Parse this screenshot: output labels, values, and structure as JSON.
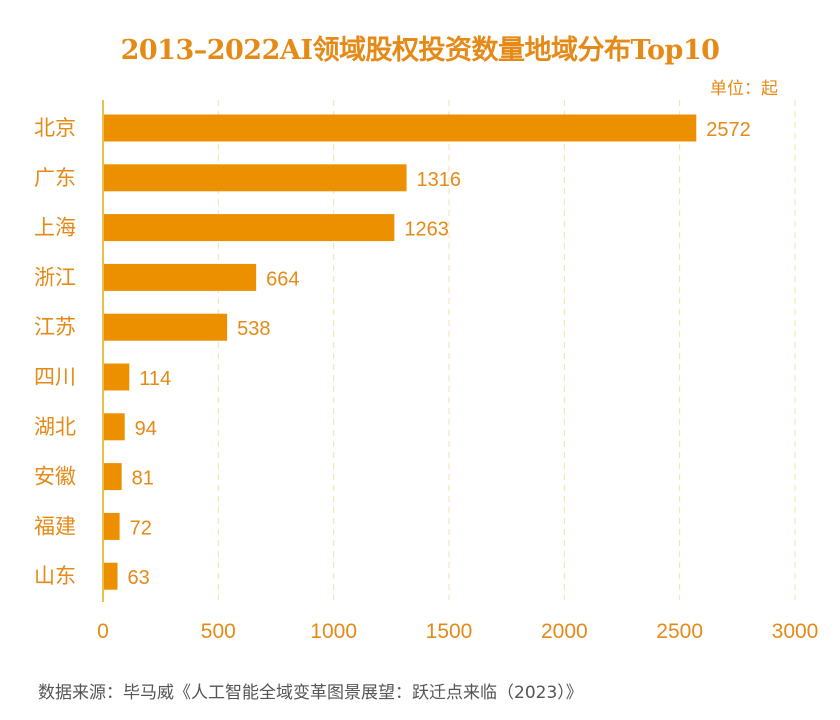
{
  "title": "2013–2022AI领域股权投资数量地域分布Top10",
  "unit": "单位：起",
  "source": "数据来源：毕马威《人工智能全域变革图景展望：跃迁点来临（2023）》",
  "colors": {
    "bar": "#EC9000",
    "text": "#E58A17",
    "grid": "#F3DFA8",
    "axis": "#E9C14A"
  },
  "chart_data": {
    "type": "bar",
    "orientation": "horizontal",
    "categories": [
      "北京",
      "广东",
      "上海",
      "浙江",
      "江苏",
      "四川",
      "湖北",
      "安徽",
      "福建",
      "山东"
    ],
    "values": [
      2572,
      1316,
      1263,
      664,
      538,
      114,
      94,
      81,
      72,
      63
    ],
    "xticks": [
      0,
      500,
      1000,
      1500,
      2000,
      2500,
      3000
    ],
    "xlim": [
      0,
      3000
    ],
    "grid": "vertical dashed"
  }
}
